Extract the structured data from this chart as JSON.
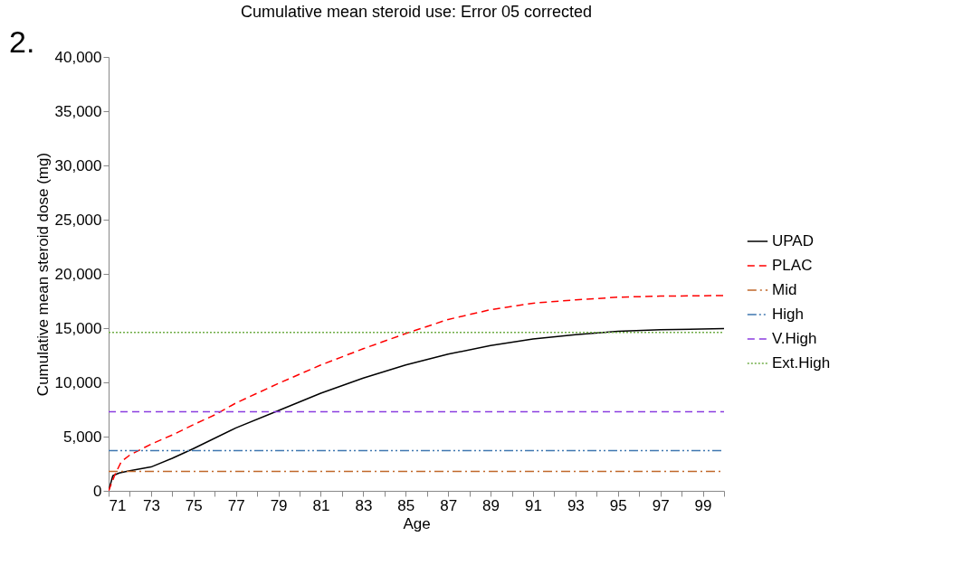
{
  "chart_data": {
    "type": "line",
    "title": "Cumulative mean steroid use: Error 05 corrected",
    "xlabel": "Age",
    "ylabel": "Cumulative mean steroid dose (mg)",
    "annotations": [
      "2."
    ],
    "xlim": [
      71,
      100
    ],
    "ylim": [
      0,
      40000
    ],
    "xticks": [
      71,
      {
        "value": 72,
        "label": null
      },
      73,
      {
        "value": 74,
        "label": null
      },
      75,
      {
        "value": 76,
        "label": null
      },
      77,
      {
        "value": 78,
        "label": null
      },
      79,
      {
        "value": 80,
        "label": null
      },
      81,
      {
        "value": 82,
        "label": null
      },
      83,
      {
        "value": 84,
        "label": null
      },
      85,
      {
        "value": 86,
        "label": null
      },
      87,
      {
        "value": 88,
        "label": null
      },
      89,
      {
        "value": 90,
        "label": null
      },
      91,
      {
        "value": 92,
        "label": null
      },
      93,
      {
        "value": 94,
        "label": null
      },
      95,
      {
        "value": 96,
        "label": null
      },
      97,
      {
        "value": 98,
        "label": null
      },
      99,
      {
        "value": 100,
        "label": null
      }
    ],
    "yticks": [
      {
        "value": 0,
        "label": "0"
      },
      {
        "value": 5000,
        "label": "5,000"
      },
      {
        "value": 10000,
        "label": "10,000"
      },
      {
        "value": 15000,
        "label": "15,000"
      },
      {
        "value": 20000,
        "label": "20,000"
      },
      {
        "value": 25000,
        "label": "25,000"
      },
      {
        "value": 30000,
        "label": "30,000"
      },
      {
        "value": 35000,
        "label": "35,000"
      },
      {
        "value": 40000,
        "label": "40,000"
      }
    ],
    "grid": false,
    "legend": "right",
    "marker": "none",
    "series": [
      {
        "name": "UPAD",
        "color": "#000000",
        "line_style": "solid",
        "x": [
          71,
          71.2,
          71.5,
          72,
          73,
          74,
          75,
          77,
          79,
          81,
          83,
          85,
          87,
          89,
          91,
          93,
          95,
          97,
          100
        ],
        "values": [
          0,
          1400,
          1650,
          1850,
          2200,
          3000,
          3900,
          5800,
          7400,
          9000,
          10400,
          11600,
          12600,
          13400,
          14000,
          14400,
          14700,
          14850,
          14950
        ]
      },
      {
        "name": "PLAC",
        "color": "#ff0000",
        "line_style": "dashed",
        "x": [
          71,
          71.3,
          71.6,
          72,
          73,
          74,
          75,
          76,
          77,
          79,
          81,
          83,
          85,
          87,
          89,
          91,
          93,
          95,
          97,
          100
        ],
        "values": [
          0,
          1500,
          2700,
          3300,
          4300,
          5150,
          6100,
          7000,
          8100,
          9900,
          11600,
          13100,
          14500,
          15800,
          16700,
          17300,
          17600,
          17850,
          17950,
          18000
        ]
      },
      {
        "name": "Mid",
        "color": "#c0672a",
        "line_style": "dashdot",
        "x": [
          71,
          100
        ],
        "values": [
          1800,
          1800
        ]
      },
      {
        "name": "High",
        "color": "#3f77b0",
        "line_style": "dashdotdot",
        "x": [
          71,
          100
        ],
        "values": [
          3700,
          3700
        ]
      },
      {
        "name": "V.High",
        "color": "#8a3ce0",
        "line_style": "dashed",
        "x": [
          71,
          100
        ],
        "values": [
          7300,
          7300
        ]
      },
      {
        "name": "Ext.High",
        "color": "#70ad47",
        "line_style": "dotted",
        "x": [
          71,
          100
        ],
        "values": [
          14600,
          14600
        ]
      }
    ]
  }
}
